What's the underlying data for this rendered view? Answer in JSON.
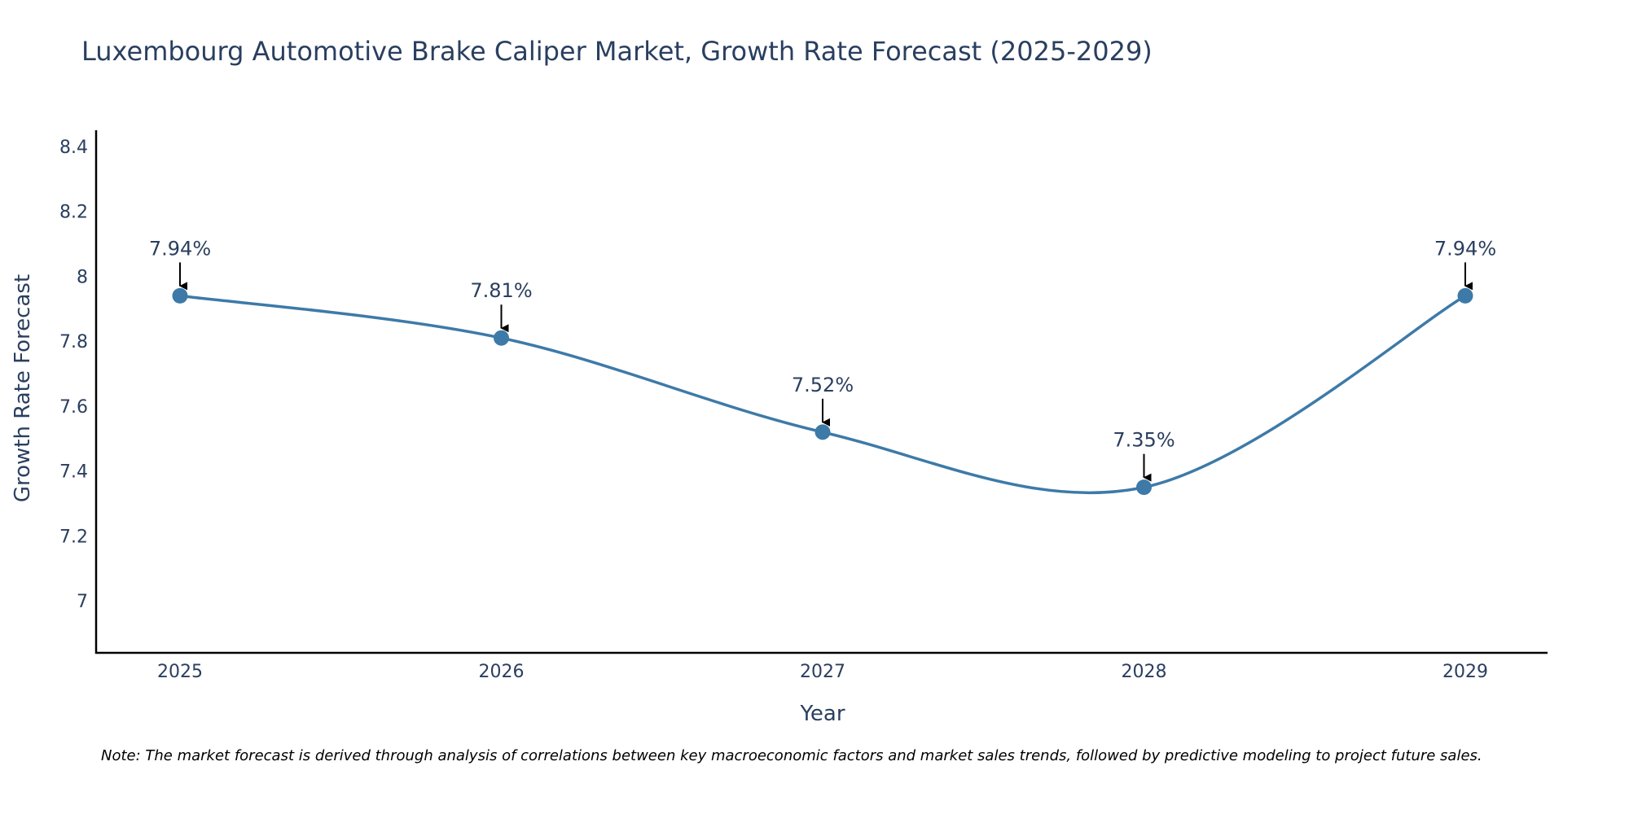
{
  "chart_data": {
    "type": "line",
    "title": "Luxembourg Automotive Brake Caliper Market, Growth Rate Forecast (2025-2029)",
    "xlabel": "Year",
    "ylabel": "Growth Rate Forecast",
    "categories": [
      "2025",
      "2026",
      "2027",
      "2028",
      "2029"
    ],
    "values": [
      7.94,
      7.81,
      7.52,
      7.35,
      7.94
    ],
    "data_labels": [
      "7.94%",
      "7.81%",
      "7.52%",
      "7.35%",
      "7.94%"
    ],
    "ylim": [
      6.84,
      8.45
    ],
    "yticks": [
      7,
      7.2,
      7.4,
      7.6,
      7.8,
      8,
      8.2,
      8.4
    ],
    "ytick_labels": [
      "7",
      "7.2",
      "7.4",
      "7.6",
      "7.8",
      "8",
      "8.2",
      "8.4"
    ],
    "grid": false,
    "line_color": "#3d7aa8",
    "marker_color": "#3d7aa8",
    "arrow_color": "#000000",
    "text_color": "#2a3f5f"
  },
  "note": "Note: The market forecast is derived through analysis of correlations between key macroeconomic factors and market sales trends, followed by predictive modeling to project future sales."
}
